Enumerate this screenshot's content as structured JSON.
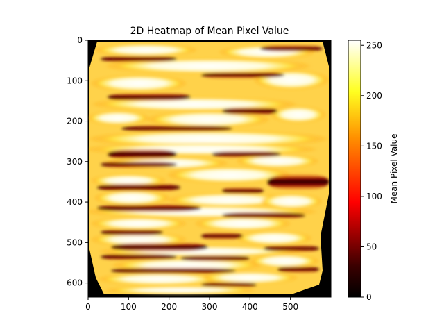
{
  "chart_data": {
    "type": "heatmap",
    "title": "2D Heatmap of Mean Pixel Value",
    "xlabel": "",
    "ylabel": "",
    "colorbar_label": "Mean Pixel Value",
    "colormap": "hot",
    "xlim": [
      0,
      600
    ],
    "ylim": [
      635,
      0
    ],
    "clim": [
      0,
      255
    ],
    "x_ticks": [
      0,
      100,
      200,
      300,
      400,
      500
    ],
    "y_ticks": [
      0,
      100,
      200,
      300,
      400,
      500,
      600
    ],
    "colorbar_ticks": [
      0,
      50,
      100,
      150,
      200,
      250
    ],
    "grid": false,
    "colors": {
      "black": "#000000",
      "dark_red": "#5a0000",
      "red": "#ff1a00",
      "orange": "#ff9a00",
      "yellow": "#ffff30",
      "white": "#ffffff"
    }
  }
}
